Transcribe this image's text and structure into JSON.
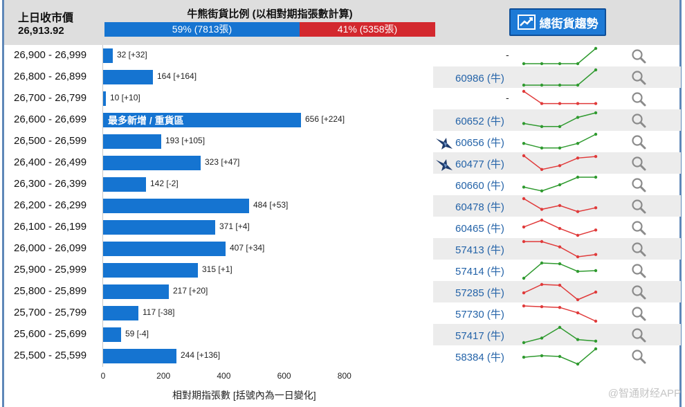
{
  "header": {
    "prev_close_label": "上日收市價",
    "prev_close_value": "26,913.92",
    "ratio_title": "牛熊街貨比例 (以相對期指張數計算)",
    "bull_percent": 59,
    "bull_label": "59% (7813張)",
    "bear_label": "41% (5358張)",
    "trend_button_label": "總街貨趨勢"
  },
  "colors": {
    "bar": "#1574d1",
    "bull": "#1574d1",
    "bear": "#d3282e",
    "up_line": "#2f9a2f",
    "down_line": "#e03a3a"
  },
  "rows": [
    {
      "range": "26,900 - 26,999",
      "value": 32,
      "label": "32 [+32]",
      "code": "",
      "trend": "up",
      "spark": [
        0,
        0,
        0,
        0,
        1
      ]
    },
    {
      "range": "26,800 - 26,899",
      "value": 164,
      "label": "164 [+164]",
      "code": "60986 (牛)",
      "trend": "up",
      "spark": [
        0,
        0,
        0,
        0,
        1
      ]
    },
    {
      "range": "26,700 - 26,799",
      "value": 10,
      "label": "10 [+10]",
      "code": "",
      "trend": "down",
      "spark": [
        1,
        0.2,
        0.2,
        0.2,
        0.2
      ]
    },
    {
      "range": "26,600 - 26,699",
      "value": 656,
      "label": "656 [+224]",
      "hot_label": "最多新增 / 重貨區",
      "code": "60652 (牛)",
      "trend": "up",
      "spark": [
        0.3,
        0.1,
        0.1,
        0.7,
        1
      ]
    },
    {
      "range": "26,500 - 26,599",
      "value": 193,
      "label": "193 [+105]",
      "code": "60656 (牛)",
      "issuer": "bird-logo",
      "trend": "up",
      "spark": [
        0.4,
        0.1,
        0.1,
        0.4,
        1
      ]
    },
    {
      "range": "26,400 - 26,499",
      "value": 323,
      "label": "323 [+47]",
      "code": "60477 (牛)",
      "issuer": "bird-logo",
      "trend": "down",
      "spark": [
        1,
        0.1,
        0.35,
        0.85,
        0.95
      ]
    },
    {
      "range": "26,300 - 26,399",
      "value": 142,
      "label": "142 [-2]",
      "code": "60660 (牛)",
      "trend": "up",
      "spark": [
        0.35,
        0.1,
        0.5,
        1,
        1
      ]
    },
    {
      "range": "26,200 - 26,299",
      "value": 484,
      "label": "484 [+53]",
      "code": "60478 (牛)",
      "trend": "down",
      "spark": [
        1,
        0.3,
        0.55,
        0.15,
        0.4
      ]
    },
    {
      "range": "26,100 - 26,199",
      "value": 371,
      "label": "371 [+4]",
      "code": "60465 (牛)",
      "trend": "down",
      "spark": [
        0.55,
        1,
        0.45,
        0,
        0.35
      ]
    },
    {
      "range": "26,000 - 26,099",
      "value": 407,
      "label": "407 [+34]",
      "code": "57413 (牛)",
      "trend": "down",
      "spark": [
        1,
        1,
        0.65,
        0,
        0.15
      ]
    },
    {
      "range": "25,900 - 25,999",
      "value": 315,
      "label": "315 [+1]",
      "code": "57414 (牛)",
      "trend": "up",
      "spark": [
        0,
        1,
        0.95,
        0.45,
        0.5
      ]
    },
    {
      "range": "25,800 - 25,899",
      "value": 217,
      "label": "217 [+20]",
      "code": "57285 (牛)",
      "trend": "down",
      "spark": [
        0.45,
        1,
        0.95,
        0,
        0.5
      ]
    },
    {
      "range": "25,700 - 25,799",
      "value": 117,
      "label": "117 [-38]",
      "code": "57730 (牛)",
      "trend": "down",
      "spark": [
        1,
        0.95,
        0.9,
        0.55,
        0
      ]
    },
    {
      "range": "25,600 - 25,699",
      "value": 59,
      "label": "59 [-4]",
      "code": "57417 (牛)",
      "trend": "up",
      "spark": [
        0,
        0.3,
        1,
        0.2,
        0.1
      ]
    },
    {
      "range": "25,500 - 25,599",
      "value": 244,
      "label": "244 [+136]",
      "code": "58384 (牛)",
      "trend": "up",
      "spark": [
        0.45,
        0.55,
        0.5,
        0,
        1
      ]
    }
  ],
  "axis": {
    "ticks": [
      0,
      200,
      400,
      600,
      800
    ],
    "max": 900,
    "label": "相對期指張數 [括號內為一日變化]"
  },
  "watermark": "@智通财经APP"
}
